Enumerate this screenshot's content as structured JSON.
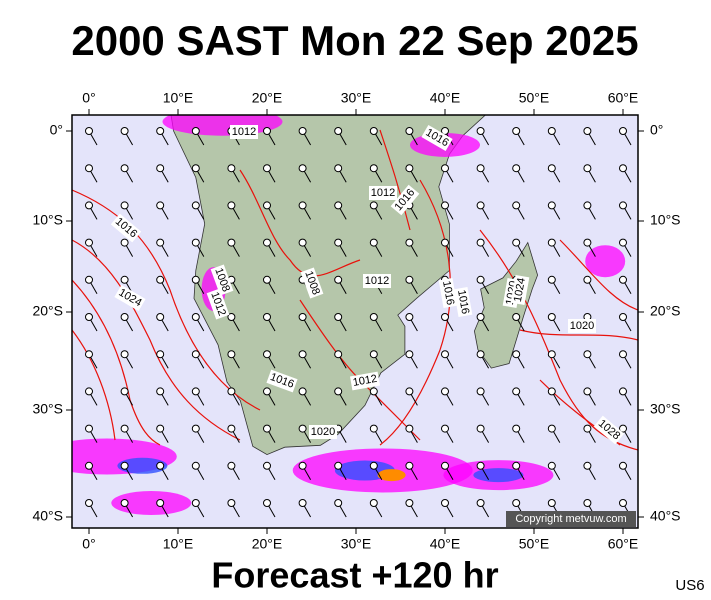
{
  "title": "2000 SAST Mon 22 Sep 2025",
  "subtitle": "Forecast +120 hr",
  "code": "US6",
  "copyright": "Copyright metvuw.com",
  "lon_labels": [
    "0°",
    "10°E",
    "20°E",
    "30°E",
    "40°E",
    "50°E",
    "60°E"
  ],
  "lat_labels": [
    "0°",
    "10°S",
    "20°S",
    "30°S",
    "40°S"
  ],
  "isobar_labels": [
    "1012",
    "1016",
    "1012",
    "1016",
    "1016",
    "1008",
    "1012",
    "1008",
    "1012",
    "1016",
    "1016",
    "1020",
    "1024",
    "1020",
    "1024",
    "1016",
    "1012",
    "1020",
    "1028"
  ]
}
